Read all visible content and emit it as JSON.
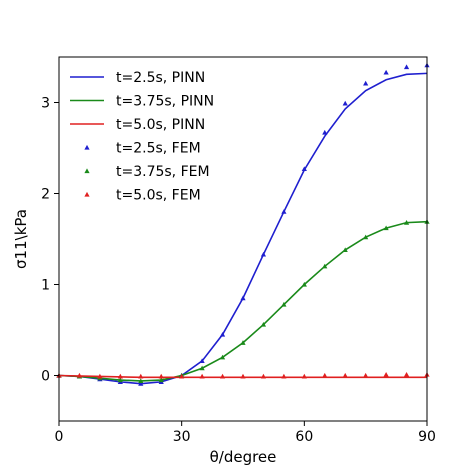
{
  "chart_data": {
    "type": "line",
    "xlabel": "θ/degree",
    "ylabel": "σ11\\kPa",
    "xlim": [
      0,
      90
    ],
    "ylim": [
      -0.5,
      3.5
    ],
    "x_ticks": [
      0,
      30,
      60,
      90
    ],
    "y_ticks": [
      0,
      1,
      2,
      3
    ],
    "grid": false,
    "legend_position": "top-left",
    "series": [
      {
        "name": "t=2.5s, PINN",
        "kind": "line",
        "color": "#1f1fcf",
        "x": [
          0,
          5,
          10,
          15,
          20,
          25,
          30,
          35,
          40,
          45,
          50,
          55,
          60,
          65,
          70,
          75,
          80,
          85,
          90
        ],
        "y": [
          0,
          -0.01,
          -0.04,
          -0.07,
          -0.09,
          -0.07,
          0.0,
          0.16,
          0.45,
          0.85,
          1.33,
          1.8,
          2.26,
          2.63,
          2.93,
          3.13,
          3.25,
          3.31,
          3.32
        ]
      },
      {
        "name": "t=3.75s, PINN",
        "kind": "line",
        "color": "#1a8a1a",
        "x": [
          0,
          5,
          10,
          15,
          20,
          25,
          30,
          35,
          40,
          45,
          50,
          55,
          60,
          65,
          70,
          75,
          80,
          85,
          90
        ],
        "y": [
          0,
          -0.01,
          -0.03,
          -0.05,
          -0.06,
          -0.05,
          0.0,
          0.08,
          0.2,
          0.36,
          0.56,
          0.78,
          1.0,
          1.2,
          1.38,
          1.52,
          1.62,
          1.68,
          1.69
        ]
      },
      {
        "name": "t=5.0s, PINN",
        "kind": "line",
        "color": "#e02020",
        "x": [
          0,
          10,
          20,
          30,
          40,
          50,
          60,
          70,
          80,
          90
        ],
        "y": [
          0,
          -0.01,
          -0.02,
          -0.02,
          -0.02,
          -0.02,
          -0.02,
          -0.02,
          -0.02,
          -0.02
        ]
      },
      {
        "name": "t=2.5s, FEM",
        "kind": "markers",
        "color": "#1f1fcf",
        "x": [
          0,
          5,
          10,
          15,
          20,
          25,
          30,
          35,
          40,
          45,
          50,
          55,
          60,
          65,
          70,
          75,
          80,
          85,
          90
        ],
        "y": [
          0,
          -0.01,
          -0.04,
          -0.07,
          -0.09,
          -0.07,
          0.0,
          0.16,
          0.45,
          0.85,
          1.33,
          1.8,
          2.27,
          2.67,
          2.99,
          3.21,
          3.33,
          3.39,
          3.41
        ]
      },
      {
        "name": "t=3.75s, FEM",
        "kind": "markers",
        "color": "#1a8a1a",
        "x": [
          0,
          5,
          10,
          15,
          20,
          25,
          30,
          35,
          40,
          45,
          50,
          55,
          60,
          65,
          70,
          75,
          80,
          85,
          90
        ],
        "y": [
          0,
          -0.01,
          -0.03,
          -0.05,
          -0.06,
          -0.05,
          0.0,
          0.08,
          0.2,
          0.36,
          0.56,
          0.78,
          1.0,
          1.2,
          1.38,
          1.52,
          1.62,
          1.68,
          1.69
        ]
      },
      {
        "name": "t=5.0s, FEM",
        "kind": "markers",
        "color": "#e02020",
        "x": [
          0,
          5,
          10,
          15,
          20,
          25,
          30,
          35,
          40,
          45,
          50,
          55,
          60,
          65,
          70,
          75,
          80,
          85,
          90
        ],
        "y": [
          0,
          0,
          -0.01,
          -0.01,
          -0.01,
          -0.01,
          -0.01,
          -0.01,
          -0.01,
          -0.01,
          -0.01,
          -0.01,
          -0.01,
          0.0,
          0.0,
          0.0,
          0.01,
          0.01,
          0.01
        ]
      }
    ]
  }
}
